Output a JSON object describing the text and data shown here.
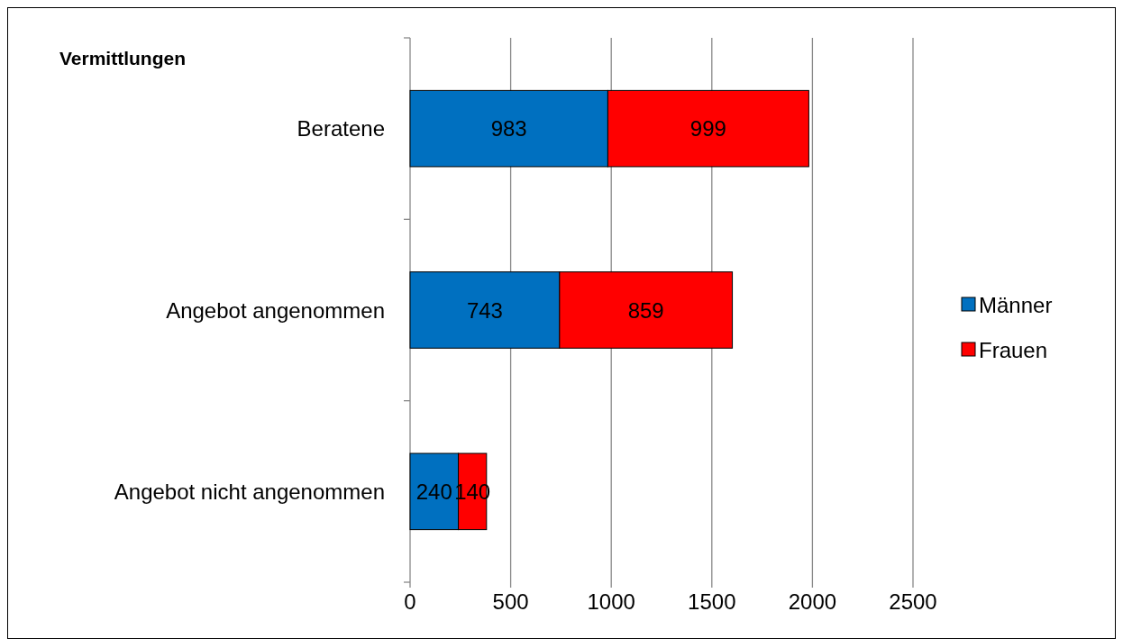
{
  "chart_data": {
    "type": "bar",
    "orientation": "horizontal",
    "stacked": true,
    "title": "Vermittlungen",
    "categories": [
      "Beratene",
      "Angebot angenommen",
      "Angebot nicht angenommen"
    ],
    "series": [
      {
        "name": "Männer",
        "color": "#0070c0",
        "values": [
          983,
          743,
          240
        ]
      },
      {
        "name": "Frauen",
        "color": "#ff0000",
        "values": [
          999,
          859,
          140
        ]
      }
    ],
    "xlim": [
      0,
      2500
    ],
    "xticks": [
      0,
      500,
      1000,
      1500,
      2000,
      2500
    ],
    "grid": "x",
    "legend": "right",
    "data_labels": true
  }
}
